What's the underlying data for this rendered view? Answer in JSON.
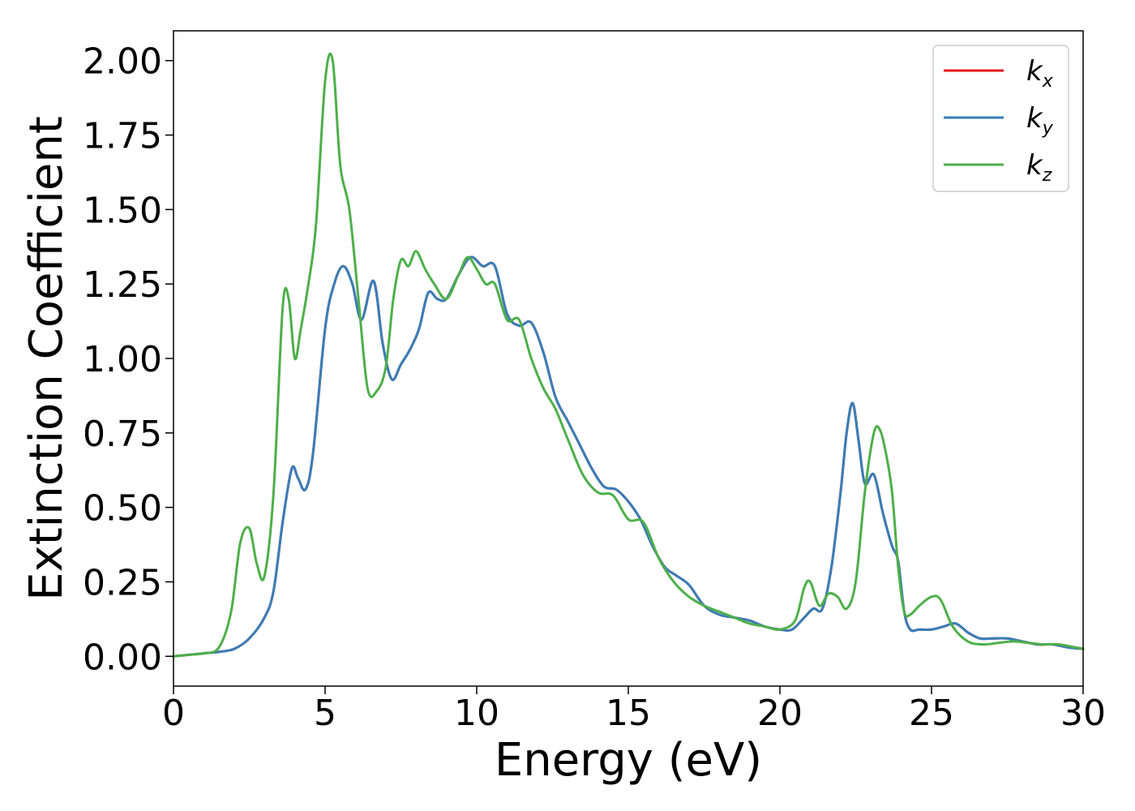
{
  "chart_data": {
    "type": "line",
    "xlabel": "Energy (eV)",
    "ylabel": "Extinction Coefficient",
    "xlim": [
      0,
      30
    ],
    "ylim": [
      -0.1,
      2.1
    ],
    "xticks": [
      0,
      5,
      10,
      15,
      20,
      25,
      30
    ],
    "xtick_labels": [
      "0",
      "5",
      "10",
      "15",
      "20",
      "25",
      "30"
    ],
    "yticks": [
      0.0,
      0.25,
      0.5,
      0.75,
      1.0,
      1.25,
      1.5,
      1.75,
      2.0
    ],
    "ytick_labels": [
      "0.00",
      "0.25",
      "0.50",
      "0.75",
      "1.00",
      "1.25",
      "1.50",
      "1.75",
      "2.00"
    ],
    "grid": false,
    "legend_position": "top-right",
    "series": [
      {
        "name": "k_x",
        "label_main": "k",
        "label_sub": "x",
        "color": "#e41a1c",
        "x": [
          0,
          0.5,
          1,
          1.5,
          2,
          2.5,
          3,
          3.3,
          3.6,
          3.9,
          4.1,
          4.35,
          4.6,
          5,
          5.3,
          5.6,
          5.9,
          6.2,
          6.6,
          6.9,
          7.2,
          7.5,
          7.8,
          8.1,
          8.4,
          8.7,
          9,
          9.4,
          9.8,
          10.2,
          10.6,
          11,
          11.4,
          11.8,
          12.2,
          12.6,
          13,
          13.4,
          13.8,
          14.2,
          14.6,
          15,
          15.4,
          15.8,
          16.2,
          16.6,
          17,
          17.5,
          18,
          18.5,
          19,
          19.5,
          20,
          20.4,
          20.8,
          21.1,
          21.4,
          21.7,
          22,
          22.2,
          22.4,
          22.6,
          22.8,
          23.1,
          23.4,
          23.7,
          23.9,
          24.1,
          24.3,
          24.6,
          25,
          25.4,
          25.8,
          26.2,
          26.6,
          27,
          27.5,
          28,
          28.5,
          29,
          29.5,
          30
        ],
        "values": [
          0.0,
          0.005,
          0.01,
          0.015,
          0.025,
          0.06,
          0.13,
          0.22,
          0.45,
          0.63,
          0.6,
          0.56,
          0.68,
          1.1,
          1.25,
          1.31,
          1.25,
          1.13,
          1.26,
          1.05,
          0.93,
          0.98,
          1.03,
          1.1,
          1.22,
          1.2,
          1.2,
          1.28,
          1.34,
          1.31,
          1.31,
          1.15,
          1.11,
          1.12,
          1.02,
          0.87,
          0.79,
          0.71,
          0.63,
          0.57,
          0.56,
          0.52,
          0.46,
          0.37,
          0.3,
          0.27,
          0.24,
          0.17,
          0.14,
          0.13,
          0.12,
          0.1,
          0.09,
          0.09,
          0.13,
          0.16,
          0.16,
          0.3,
          0.55,
          0.75,
          0.85,
          0.72,
          0.58,
          0.61,
          0.48,
          0.37,
          0.32,
          0.15,
          0.09,
          0.09,
          0.09,
          0.1,
          0.11,
          0.08,
          0.06,
          0.06,
          0.06,
          0.05,
          0.04,
          0.04,
          0.03,
          0.025
        ]
      },
      {
        "name": "k_y",
        "label_main": "k",
        "label_sub": "y",
        "color": "#377eb8",
        "x": [
          0,
          0.5,
          1,
          1.5,
          2,
          2.5,
          3,
          3.3,
          3.6,
          3.9,
          4.1,
          4.35,
          4.6,
          5,
          5.3,
          5.6,
          5.9,
          6.2,
          6.6,
          6.9,
          7.2,
          7.5,
          7.8,
          8.1,
          8.4,
          8.7,
          9,
          9.4,
          9.8,
          10.2,
          10.6,
          11,
          11.4,
          11.8,
          12.2,
          12.6,
          13,
          13.4,
          13.8,
          14.2,
          14.6,
          15,
          15.4,
          15.8,
          16.2,
          16.6,
          17,
          17.5,
          18,
          18.5,
          19,
          19.5,
          20,
          20.4,
          20.8,
          21.1,
          21.4,
          21.7,
          22,
          22.2,
          22.4,
          22.6,
          22.8,
          23.1,
          23.4,
          23.7,
          23.9,
          24.1,
          24.3,
          24.6,
          25,
          25.4,
          25.8,
          26.2,
          26.6,
          27,
          27.5,
          28,
          28.5,
          29,
          29.5,
          30
        ],
        "values": [
          0.0,
          0.005,
          0.01,
          0.015,
          0.025,
          0.06,
          0.13,
          0.22,
          0.45,
          0.63,
          0.6,
          0.56,
          0.68,
          1.1,
          1.25,
          1.31,
          1.25,
          1.13,
          1.26,
          1.05,
          0.93,
          0.98,
          1.03,
          1.1,
          1.22,
          1.2,
          1.2,
          1.28,
          1.34,
          1.31,
          1.31,
          1.15,
          1.11,
          1.12,
          1.02,
          0.87,
          0.79,
          0.71,
          0.63,
          0.57,
          0.56,
          0.52,
          0.46,
          0.37,
          0.3,
          0.27,
          0.24,
          0.17,
          0.14,
          0.13,
          0.12,
          0.1,
          0.09,
          0.09,
          0.13,
          0.16,
          0.16,
          0.3,
          0.55,
          0.75,
          0.85,
          0.72,
          0.58,
          0.61,
          0.48,
          0.37,
          0.32,
          0.15,
          0.09,
          0.09,
          0.09,
          0.1,
          0.11,
          0.08,
          0.06,
          0.06,
          0.06,
          0.05,
          0.04,
          0.04,
          0.03,
          0.025
        ]
      },
      {
        "name": "k_z",
        "label_main": "k",
        "label_sub": "z",
        "color": "#4daf4a",
        "x": [
          0,
          0.5,
          1,
          1.5,
          1.9,
          2.2,
          2.5,
          2.75,
          3,
          3.3,
          3.6,
          3.8,
          4,
          4.2,
          4.45,
          4.7,
          5,
          5.25,
          5.5,
          5.8,
          6.1,
          6.4,
          6.7,
          7,
          7.25,
          7.5,
          7.75,
          8,
          8.3,
          8.6,
          9,
          9.4,
          9.7,
          10,
          10.3,
          10.6,
          11,
          11.4,
          11.8,
          12.2,
          12.6,
          13,
          13.5,
          14,
          14.5,
          15,
          15.5,
          16,
          16.5,
          17,
          17.5,
          18,
          18.5,
          19,
          19.5,
          20,
          20.5,
          20.8,
          21,
          21.3,
          21.6,
          21.9,
          22.2,
          22.5,
          22.8,
          23.1,
          23.3,
          23.5,
          23.7,
          23.9,
          24.1,
          24.3,
          24.6,
          25,
          25.3,
          25.7,
          26.2,
          26.7,
          27.2,
          27.7,
          28.2,
          28.7,
          29.2,
          30
        ],
        "values": [
          0.0,
          0.005,
          0.01,
          0.03,
          0.15,
          0.38,
          0.43,
          0.31,
          0.27,
          0.55,
          1.17,
          1.2,
          1.0,
          1.1,
          1.25,
          1.45,
          1.93,
          2.0,
          1.65,
          1.5,
          1.2,
          0.9,
          0.89,
          0.97,
          1.2,
          1.33,
          1.31,
          1.36,
          1.3,
          1.25,
          1.2,
          1.28,
          1.34,
          1.3,
          1.25,
          1.25,
          1.13,
          1.13,
          1.0,
          0.9,
          0.83,
          0.73,
          0.61,
          0.55,
          0.54,
          0.46,
          0.45,
          0.33,
          0.25,
          0.2,
          0.17,
          0.15,
          0.13,
          0.11,
          0.1,
          0.09,
          0.12,
          0.23,
          0.25,
          0.17,
          0.21,
          0.2,
          0.16,
          0.25,
          0.55,
          0.75,
          0.76,
          0.68,
          0.55,
          0.3,
          0.15,
          0.14,
          0.17,
          0.2,
          0.19,
          0.1,
          0.05,
          0.04,
          0.045,
          0.05,
          0.045,
          0.04,
          0.04,
          0.025
        ]
      }
    ]
  }
}
